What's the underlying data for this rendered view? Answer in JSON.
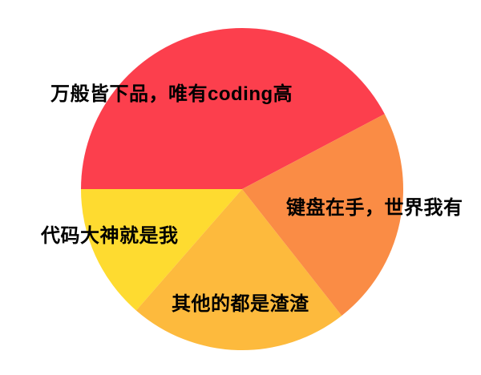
{
  "chart_data": {
    "type": "pie",
    "title": "",
    "background_color": "#FFFFFF",
    "legend": "none",
    "labels_position": "on-chart",
    "label_text_color": "#000000",
    "slices": [
      {
        "label": "万般皆下品，唯有coding高",
        "color": "#FC3F4D",
        "percent": 42.3,
        "start_angle_deg": 27.8,
        "end_angle_deg": 180.0
      },
      {
        "label": "代码大神就是我",
        "color": "#FEDB30",
        "percent": 13.6,
        "start_angle_deg": 180.0,
        "end_angle_deg": 228.9
      },
      {
        "label": "其他的都是渣渣",
        "color": "#FDBA3D",
        "percent": 22.0,
        "start_angle_deg": 228.9,
        "end_angle_deg": 308.2
      },
      {
        "label": "键盘在手，世界我有",
        "color": "#FA8C45",
        "percent": 22.1,
        "start_angle_deg": 308.2,
        "end_angle_deg": 387.8
      }
    ],
    "geometry_note": "labels drawn directly on slices, no legend, no axes"
  }
}
